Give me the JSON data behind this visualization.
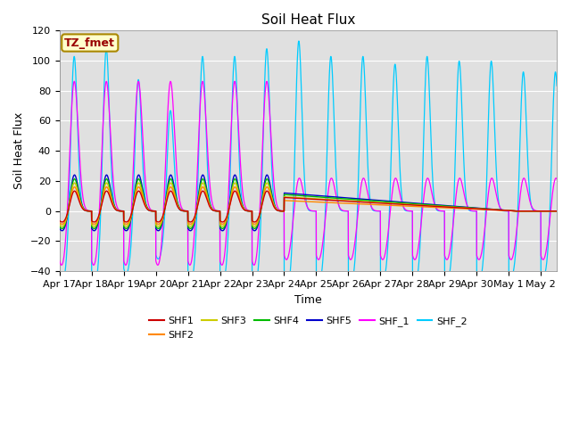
{
  "title": "Soil Heat Flux",
  "xlabel": "Time",
  "ylabel": "Soil Heat Flux",
  "ylim": [
    -40,
    120
  ],
  "xlim": [
    0,
    15.5
  ],
  "bg_color": "#e0e0e0",
  "annotation_text": "TZ_fmet",
  "annotation_bg": "#ffffcc",
  "annotation_border": "#aa8800",
  "annotation_text_color": "#990000",
  "x_tick_labels": [
    "Apr 17",
    "Apr 18",
    "Apr 19",
    "Apr 20",
    "Apr 21",
    "Apr 22",
    "Apr 23",
    "Apr 24",
    "Apr 25",
    "Apr 26",
    "Apr 27",
    "Apr 28",
    "Apr 29",
    "Apr 30",
    "May 1",
    "May 2"
  ],
  "series_colors": {
    "SHF1": "#cc0000",
    "SHF2": "#ff8800",
    "SHF3": "#cccc00",
    "SHF4": "#00bb00",
    "SHF5": "#0000cc",
    "SHF_1": "#ff00ff",
    "SHF_2": "#00ccff"
  },
  "transition_day": 7.0,
  "total_days": 15.5,
  "flat_values": {
    "SHF1": 9,
    "SHF2": 7,
    "SHF3": 9.5,
    "SHF4": 11,
    "SHF5": 12
  },
  "flat_end_day": 14.2,
  "legend_order": [
    "SHF1",
    "SHF2",
    "SHF3",
    "SHF4",
    "SHF5",
    "SHF_1",
    "SHF_2"
  ]
}
